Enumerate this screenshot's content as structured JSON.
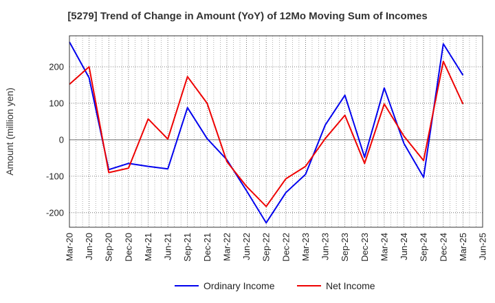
{
  "chart_data": {
    "type": "line",
    "title": "[5279]  Trend of Change in Amount (YoY) of 12Mo Moving Sum of Incomes",
    "xlabel": "",
    "ylabel": "Amount (million yen)",
    "ylim": [
      -240,
      285
    ],
    "yticks": [
      -200,
      -100,
      0,
      100,
      200
    ],
    "grid": true,
    "legend_position": "bottom",
    "categories": [
      "Mar-20",
      "Jun-20",
      "Sep-20",
      "Dec-20",
      "Mar-21",
      "Jun-21",
      "Sep-21",
      "Dec-21",
      "Mar-22",
      "Jun-22",
      "Sep-22",
      "Dec-22",
      "Mar-23",
      "Jun-23",
      "Sep-23",
      "Dec-23",
      "Mar-24",
      "Jun-24",
      "Sep-24",
      "Dec-24",
      "Mar-25",
      "Jun-25"
    ],
    "series": [
      {
        "name": "Ordinary Income",
        "color": "#0000ee",
        "values": [
          268,
          170,
          -82,
          -65,
          -73,
          -80,
          88,
          3,
          -55,
          -140,
          -228,
          -145,
          -95,
          40,
          122,
          -48,
          142,
          -10,
          -103,
          263,
          177,
          null
        ]
      },
      {
        "name": "Net Income",
        "color": "#ee0000",
        "values": [
          152,
          200,
          -90,
          -78,
          57,
          2,
          173,
          100,
          -60,
          -128,
          -183,
          -107,
          -73,
          3,
          67,
          -65,
          98,
          10,
          -57,
          215,
          98,
          null
        ]
      }
    ]
  }
}
